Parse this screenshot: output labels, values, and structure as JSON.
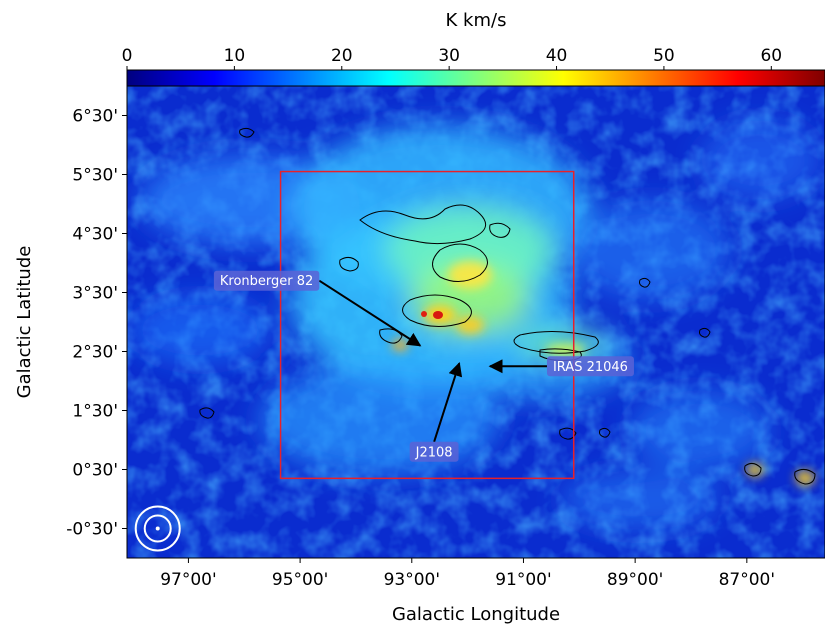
{
  "chart_data": {
    "type": "heatmap",
    "xlabel": "Galactic Longitude",
    "ylabel": "Galactic Latitude",
    "x_axis_inverted": true,
    "xlim": [
      98.1,
      85.6
    ],
    "ylim": [
      -1.0,
      7.0
    ],
    "x_ticks": [
      {
        "value": 97.0,
        "label": "97°00'"
      },
      {
        "value": 95.0,
        "label": "95°00'"
      },
      {
        "value": 93.0,
        "label": "93°00'"
      },
      {
        "value": 91.0,
        "label": "91°00'"
      },
      {
        "value": 89.0,
        "label": "89°00'"
      },
      {
        "value": 87.0,
        "label": "87°00'"
      }
    ],
    "y_ticks": [
      {
        "value": -0.5,
        "label": "-0°30'"
      },
      {
        "value": 0.5,
        "label": "0°30'"
      },
      {
        "value": 1.5,
        "label": "1°30'"
      },
      {
        "value": 2.5,
        "label": "2°30'"
      },
      {
        "value": 3.5,
        "label": "3°30'"
      },
      {
        "value": 4.5,
        "label": "4°30'"
      },
      {
        "value": 5.5,
        "label": "5°30'"
      },
      {
        "value": 6.5,
        "label": "6°30'"
      }
    ],
    "colorbar": {
      "label": "K km/s",
      "colormap": "jet",
      "range": [
        0,
        65
      ],
      "ticks": [
        {
          "value": 0,
          "label": "0"
        },
        {
          "value": 10,
          "label": "10"
        },
        {
          "value": 20,
          "label": "20"
        },
        {
          "value": 30,
          "label": "30"
        },
        {
          "value": 40,
          "label": "40"
        },
        {
          "value": 50,
          "label": "50"
        },
        {
          "value": 60,
          "label": "60"
        }
      ]
    },
    "region_box": {
      "l_min": 90.1,
      "l_max": 95.35,
      "b_min": 0.35,
      "b_max": 5.55,
      "color": "#e8202a"
    },
    "annotations": [
      {
        "label": "Kronberger 82",
        "target_l": 92.85,
        "target_b": 2.6,
        "text_l": 95.6,
        "text_b": 3.7
      },
      {
        "label": "IRAS 21046",
        "target_l": 91.6,
        "target_b": 2.25,
        "text_l": 89.8,
        "text_b": 2.25
      },
      {
        "label": "J2108",
        "target_l": 92.15,
        "target_b": 2.3,
        "text_l": 92.6,
        "text_b": 0.8
      }
    ],
    "beam_marker": {
      "l": 97.55,
      "b": -0.5
    }
  }
}
